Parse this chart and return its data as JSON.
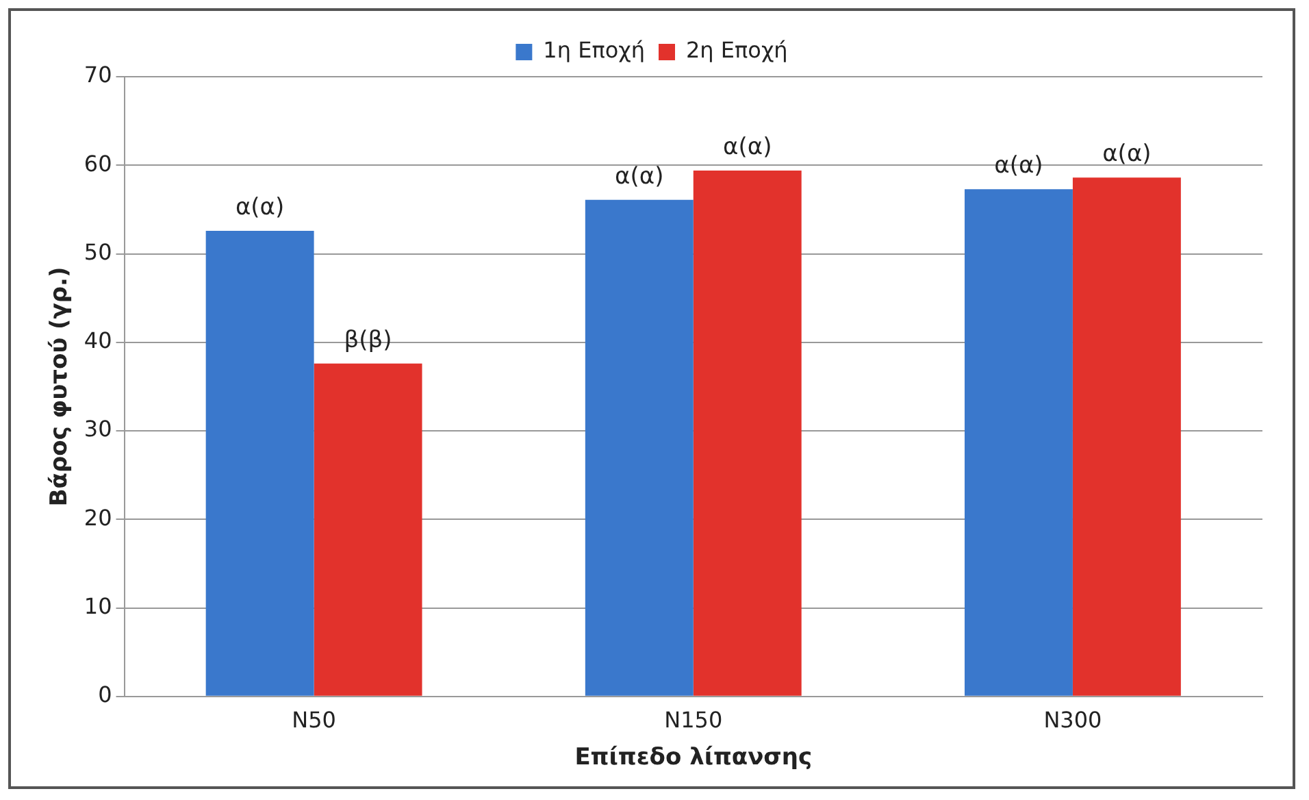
{
  "chart_data": {
    "type": "bar",
    "xlabel": "Επίπεδο λίπανσης",
    "ylabel": "Βάρος φυτού (γρ.)",
    "categories": [
      "N50",
      "N150",
      "N300"
    ],
    "series": [
      {
        "name": "1η Εποχή",
        "color": "#3a78cc",
        "values": [
          52.6,
          56.1,
          57.3
        ],
        "value_labels": [
          "α(α)",
          "α(α)",
          "α(α)"
        ]
      },
      {
        "name": "2η Εποχή",
        "color": "#e2322c",
        "values": [
          37.6,
          59.4,
          58.6
        ],
        "value_labels": [
          "β(β)",
          "α(α)",
          "α(α)"
        ]
      }
    ],
    "ylim": [
      0,
      70
    ],
    "yticks": [
      0,
      10,
      20,
      30,
      40,
      50,
      60,
      70
    ],
    "grid": "y",
    "legend": "top"
  }
}
